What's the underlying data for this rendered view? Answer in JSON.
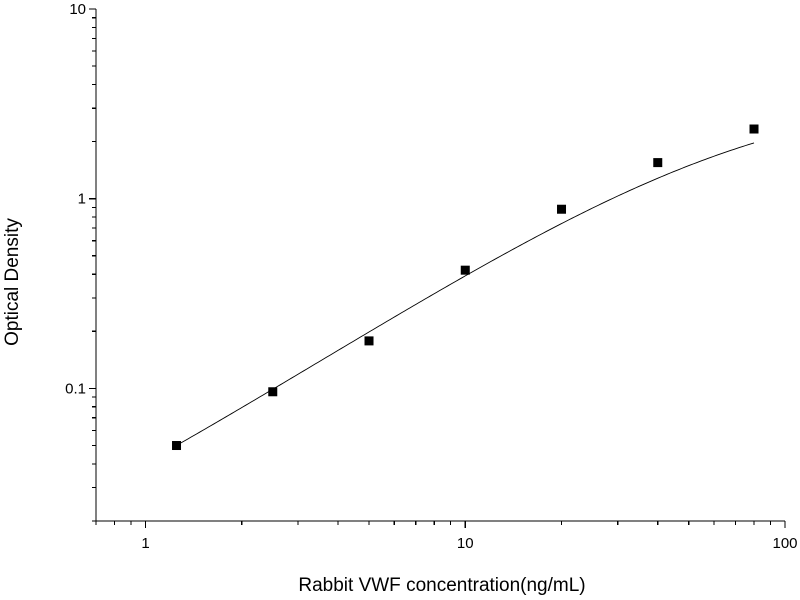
{
  "chart_data": {
    "type": "scatter",
    "title": "",
    "xlabel": "Rabbit VWF concentration(ng/mL)",
    "ylabel": "Optical Density",
    "x_scale": "log",
    "y_scale": "log",
    "xlim": [
      0.7,
      100
    ],
    "ylim": [
      0.02,
      10
    ],
    "x_ticks": [
      {
        "value": 1,
        "label": "1"
      },
      {
        "value": 10,
        "label": "10"
      },
      {
        "value": 100,
        "label": "100"
      }
    ],
    "y_ticks": [
      {
        "value": 0.1,
        "label": "0.1"
      },
      {
        "value": 1,
        "label": "1"
      },
      {
        "value": 10,
        "label": "10"
      }
    ],
    "grid": false,
    "legend": "none",
    "series": [
      {
        "marker": "square",
        "color": "#000000",
        "points": [
          {
            "x": 1.25,
            "y": 0.05
          },
          {
            "x": 2.5,
            "y": 0.096
          },
          {
            "x": 5,
            "y": 0.178
          },
          {
            "x": 10,
            "y": 0.42
          },
          {
            "x": 20,
            "y": 0.88
          },
          {
            "x": 40,
            "y": 1.55
          },
          {
            "x": 80,
            "y": 2.33
          }
        ]
      }
    ],
    "fit_curve": {
      "type": "four-parameter logistic",
      "color": "#000000",
      "x_range": [
        1.25,
        80
      ],
      "A": 0.005,
      "B": 1.08,
      "C": 75,
      "D": 3.8
    }
  }
}
